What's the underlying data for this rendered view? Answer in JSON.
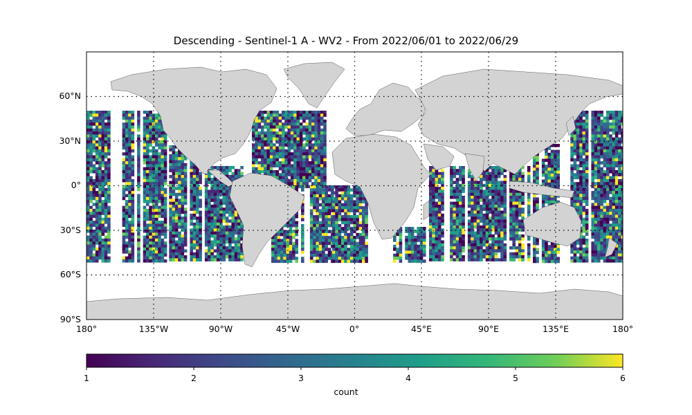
{
  "map": {
    "title": "Descending - Sentinel-1 A - WV2 - From 2022/06/01 to 2022/06/29",
    "projection": "equirectangular",
    "lon_range": [
      -180,
      180
    ],
    "lat_range": [
      -90,
      90
    ],
    "land_color": "#d3d3d3",
    "ocean_color": "#ffffff",
    "gridlines": "dotted",
    "lat_labels": [
      "60°N",
      "30°N",
      "0°",
      "30°S",
      "60°S",
      "90°S"
    ],
    "lon_labels": [
      "180°",
      "135°W",
      "90°W",
      "45°W",
      "0°",
      "45°E",
      "90°E",
      "135°E",
      "180°"
    ]
  },
  "colorbar": {
    "label": "count",
    "colormap": "viridis",
    "range": [
      1,
      6
    ],
    "tick_labels": [
      "1",
      "2",
      "3",
      "4",
      "5",
      "6"
    ]
  }
}
